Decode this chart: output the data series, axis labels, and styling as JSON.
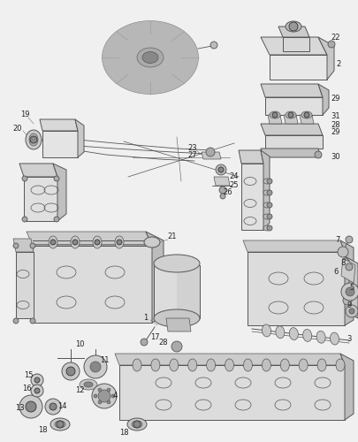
{
  "bg_color": "#f0f0f0",
  "line_color": "#555555",
  "dark_color": "#333333",
  "label_color": "#222222",
  "fill_light": "#e8e8e8",
  "fill_mid": "#d0d0d0",
  "fill_dark": "#b8b8b8",
  "figsize": [
    4.06,
    5.0
  ],
  "dpi": 100,
  "xlim": [
    0,
    406
  ],
  "ylim": [
    0,
    500
  ]
}
